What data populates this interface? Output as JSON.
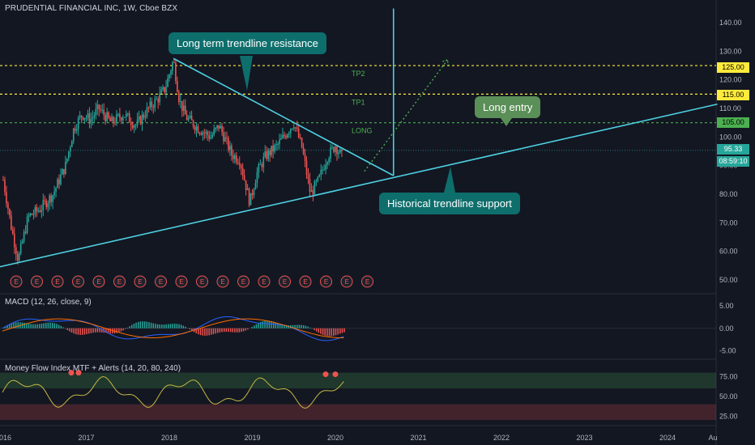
{
  "header": {
    "title": "PRUDENTIAL FINANCIAL INC, 1W, Cboe BZX"
  },
  "macd": {
    "label": "MACD (12, 26, close, 9)"
  },
  "mfi": {
    "label": "Money Flow Index MTF + Alerts (14, 20, 80, 240)"
  },
  "annotations": {
    "resistance": "Long term trendline resistance",
    "support": "Historical trendline support",
    "long_entry": "Long entry",
    "tp2": "TP2",
    "tp1": "TP1",
    "long": "LONG"
  },
  "price_tags": {
    "tp2": "125.00",
    "tp1": "115.00",
    "long": "105.00",
    "last": "95.33",
    "countdown": "08:59:10"
  },
  "colors": {
    "background": "#131722",
    "bull": "#26a69a",
    "bear": "#ef5350",
    "trendline": "#4dd0e1",
    "yellow": "#ffeb3b",
    "green_level": "#4caf50",
    "callout_teal": "#0e6e6c",
    "callout_green": "#5a8f57"
  },
  "chart_data": {
    "type": "line",
    "title": "PRUDENTIAL FINANCIAL INC, 1W, Cboe BZX",
    "x_ticks": [
      "2016",
      "2017",
      "2018",
      "2019",
      "2020",
      "2021",
      "2022",
      "2023",
      "2024",
      "Au"
    ],
    "price_axis": {
      "ticks": [
        "140.00",
        "130.00",
        "120.00",
        "110.00",
        "100.00",
        "90.00",
        "80.00",
        "70.00",
        "60.00",
        "50.00"
      ],
      "ylim": [
        46,
        144
      ]
    },
    "price_series": {
      "name": "",
      "x": [
        2016.0,
        2016.1,
        2016.18,
        2016.3,
        2016.45,
        2016.6,
        2016.75,
        2016.85,
        2016.95,
        2017.05,
        2017.15,
        2017.3,
        2017.45,
        2017.6,
        2017.75,
        2017.85,
        2017.95,
        2018.05,
        2018.12,
        2018.2,
        2018.35,
        2018.5,
        2018.6,
        2018.75,
        2018.85,
        2018.97,
        2019.05,
        2019.15,
        2019.3,
        2019.45,
        2019.5,
        2019.6,
        2019.7,
        2019.8,
        2019.9,
        2020.0,
        2020.08
      ],
      "y": [
        85,
        68,
        57,
        72,
        75,
        80,
        90,
        103,
        108,
        106,
        110,
        105,
        108,
        104,
        110,
        113,
        117,
        127,
        113,
        107,
        103,
        100,
        104,
        94,
        92,
        77,
        87,
        93,
        97,
        103,
        105,
        96,
        80,
        85,
        93,
        97,
        93
      ]
    },
    "levels": [
      {
        "name": "TP2",
        "value": 125
      },
      {
        "name": "TP1",
        "value": 115
      },
      {
        "name": "LONG",
        "value": 105
      },
      {
        "name": "last",
        "value": 95.33
      }
    ],
    "trendlines": [
      {
        "name": "Historical trendline support",
        "from": [
          2015.95,
          54.5
        ],
        "to": [
          2024.6,
          111.5
        ]
      },
      {
        "name": "Long term trendline resistance",
        "from": [
          2018.05,
          127.5
        ],
        "to": [
          2020.7,
          86.5
        ]
      }
    ],
    "projection": {
      "from": [
        2020.35,
        88
      ],
      "to": [
        2021.35,
        127
      ]
    },
    "vertical_line": {
      "x": 2020.7,
      "from_value": 86.5,
      "to_value": 145
    },
    "earnings_markers": {
      "label": "E",
      "count": 18
    },
    "macd": {
      "ticks": [
        "5.00",
        "0.00",
        "-5.00"
      ],
      "ylim": [
        -6.5,
        7.5
      ]
    },
    "mfi": {
      "ticks": [
        "75.00",
        "50.00",
        "25.00"
      ],
      "ylim": [
        15,
        95
      ],
      "bands": [
        [
          60,
          80
        ],
        [
          20,
          40
        ]
      ]
    }
  }
}
